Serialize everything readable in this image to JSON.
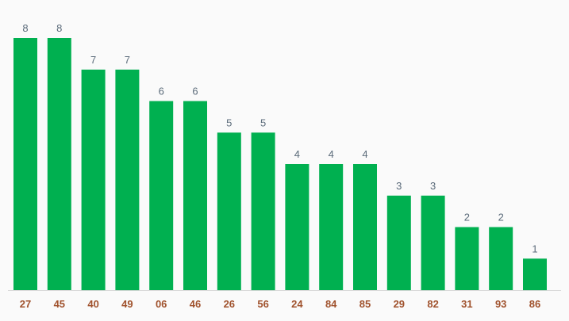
{
  "chart_data": {
    "type": "bar",
    "title": "",
    "xlabel": "",
    "ylabel": "",
    "categories": [
      "27",
      "45",
      "40",
      "49",
      "06",
      "46",
      "26",
      "56",
      "24",
      "84",
      "85",
      "29",
      "82",
      "31",
      "93",
      "86"
    ],
    "values": [
      8,
      8,
      7,
      7,
      6,
      6,
      5,
      5,
      4,
      4,
      4,
      3,
      3,
      2,
      2,
      1
    ],
    "ylim": [
      0,
      8
    ],
    "grid": false,
    "data_labels": true,
    "colors": {
      "bar": "#00b050",
      "value_label": "#5b6b7a",
      "category_label": "#a0522d",
      "baseline": "#d9d9d9",
      "background": "#fafafa"
    }
  }
}
